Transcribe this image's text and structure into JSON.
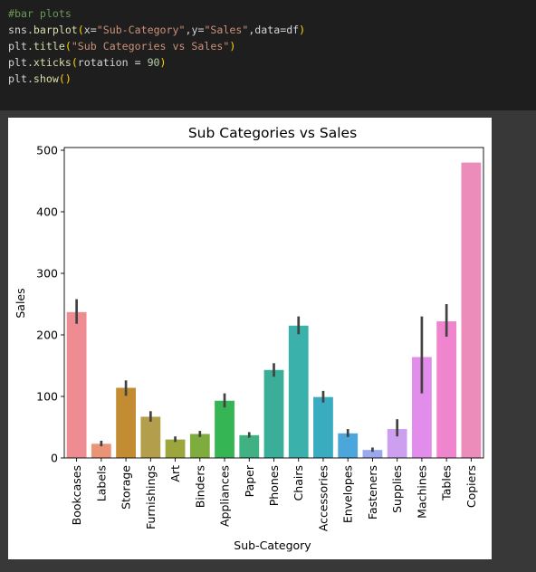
{
  "code": {
    "lines": [
      [
        {
          "t": "#bar plots",
          "c": "comment"
        }
      ],
      [
        {
          "t": "sns.",
          "c": "plain"
        },
        {
          "t": "barplot",
          "c": "fn"
        },
        {
          "t": "(",
          "c": "paren"
        },
        {
          "t": "x=",
          "c": "plain"
        },
        {
          "t": "\"Sub-Category\"",
          "c": "str"
        },
        {
          "t": ",y=",
          "c": "plain"
        },
        {
          "t": "\"Sales\"",
          "c": "str"
        },
        {
          "t": ",data=df",
          "c": "plain"
        },
        {
          "t": ")",
          "c": "paren"
        }
      ],
      [
        {
          "t": "plt.",
          "c": "plain"
        },
        {
          "t": "title",
          "c": "fn"
        },
        {
          "t": "(",
          "c": "paren"
        },
        {
          "t": "\"Sub Categories vs Sales\"",
          "c": "str"
        },
        {
          "t": ")",
          "c": "paren"
        }
      ],
      [
        {
          "t": "plt.",
          "c": "plain"
        },
        {
          "t": "xticks",
          "c": "fn"
        },
        {
          "t": "(",
          "c": "paren"
        },
        {
          "t": "rotation = ",
          "c": "plain"
        },
        {
          "t": "90",
          "c": "num"
        },
        {
          "t": ")",
          "c": "paren"
        }
      ],
      [
        {
          "t": "plt.",
          "c": "plain"
        },
        {
          "t": "show",
          "c": "fn"
        },
        {
          "t": "()",
          "c": "paren"
        }
      ]
    ]
  },
  "chart_data": {
    "type": "bar",
    "title": "Sub Categories vs Sales",
    "xlabel": "Sub-Category",
    "ylabel": "Sales",
    "ylim": [
      0,
      500
    ],
    "yticks": [
      0,
      100,
      200,
      300,
      400,
      500
    ],
    "grid": false,
    "categories": [
      "Bookcases",
      "Labels",
      "Storage",
      "Furnishings",
      "Art",
      "Binders",
      "Appliances",
      "Paper",
      "Phones",
      "Chairs",
      "Accessories",
      "Envelopes",
      "Fasteners",
      "Supplies",
      "Machines",
      "Tables",
      "Copiers"
    ],
    "values": [
      237,
      23,
      114,
      67,
      30,
      39,
      93,
      37,
      143,
      215,
      99,
      40,
      13,
      47,
      164,
      222,
      480
    ],
    "error_low": [
      218,
      19,
      101,
      59,
      26,
      34,
      82,
      33,
      132,
      201,
      90,
      34,
      10,
      35,
      105,
      197,
      480
    ],
    "error_high": [
      258,
      28,
      126,
      76,
      35,
      44,
      105,
      42,
      154,
      230,
      109,
      47,
      17,
      63,
      230,
      250,
      480
    ],
    "colors": [
      "#ee8c92",
      "#e99377",
      "#c48c32",
      "#b39f4b",
      "#9da53d",
      "#7fac3e",
      "#35b553",
      "#3fb183",
      "#3aae98",
      "#3bb1ac",
      "#3aacc0",
      "#4aa6db",
      "#9aa9ee",
      "#cda0ef",
      "#e28deb",
      "#ef85cd",
      "#ec8cba"
    ]
  }
}
